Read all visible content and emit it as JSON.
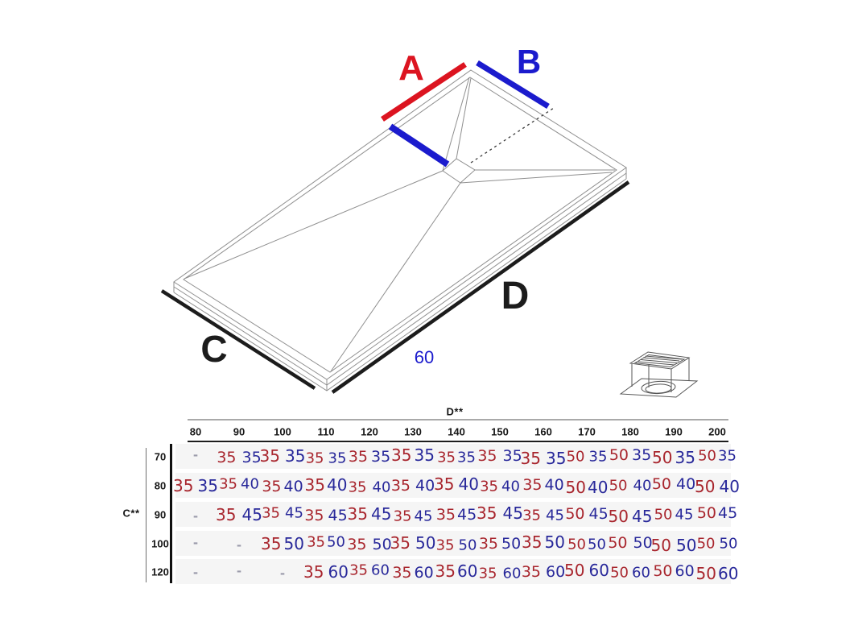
{
  "diagram": {
    "label_a": "A",
    "label_b": "B",
    "label_c": "C",
    "label_d": "D",
    "drain_distance": "60",
    "colors": {
      "measure_red": "#dc1420",
      "measure_blue": "#1b1bcd",
      "edge_black": "#1c1c1c",
      "table_red": "#a8252d",
      "table_blue": "#28289a"
    },
    "icons": [
      "drain-icon"
    ]
  },
  "table": {
    "column_axis_label": "D**",
    "row_axis_label": "C**",
    "columns": [
      "80",
      "90",
      "100",
      "110",
      "120",
      "130",
      "140",
      "150",
      "160",
      "170",
      "180",
      "190",
      "200"
    ],
    "empty_cell": "-",
    "rows": [
      {
        "label": "70",
        "cells": [
          "-",
          [
            "35",
            "35"
          ],
          [
            "35",
            "35"
          ],
          [
            "35",
            "35"
          ],
          [
            "35",
            "35"
          ],
          [
            "35",
            "35"
          ],
          [
            "35",
            "35"
          ],
          [
            "35",
            "35"
          ],
          [
            "35",
            "35"
          ],
          [
            "50",
            "35"
          ],
          [
            "50",
            "35"
          ],
          [
            "50",
            "35"
          ],
          [
            "50",
            "35"
          ]
        ]
      },
      {
        "label": "80",
        "cells": [
          [
            "35",
            "35"
          ],
          [
            "35",
            "40"
          ],
          [
            "35",
            "40"
          ],
          [
            "35",
            "40"
          ],
          [
            "35",
            "40"
          ],
          [
            "35",
            "40"
          ],
          [
            "35",
            "40"
          ],
          [
            "35",
            "40"
          ],
          [
            "35",
            "40"
          ],
          [
            "50",
            "40"
          ],
          [
            "50",
            "40"
          ],
          [
            "50",
            "40"
          ],
          [
            "50",
            "40"
          ]
        ]
      },
      {
        "label": "90",
        "cells": [
          "-",
          [
            "35",
            "45"
          ],
          [
            "35",
            "45"
          ],
          [
            "35",
            "45"
          ],
          [
            "35",
            "45"
          ],
          [
            "35",
            "45"
          ],
          [
            "35",
            "45"
          ],
          [
            "35",
            "45"
          ],
          [
            "35",
            "45"
          ],
          [
            "50",
            "45"
          ],
          [
            "50",
            "45"
          ],
          [
            "50",
            "45"
          ],
          [
            "50",
            "45"
          ]
        ]
      },
      {
        "label": "100",
        "cells": [
          "-",
          "-",
          [
            "35",
            "50"
          ],
          [
            "35",
            "50"
          ],
          [
            "35",
            "50"
          ],
          [
            "35",
            "50"
          ],
          [
            "35",
            "50"
          ],
          [
            "35",
            "50"
          ],
          [
            "35",
            "50"
          ],
          [
            "50",
            "50"
          ],
          [
            "50",
            "50"
          ],
          [
            "50",
            "50"
          ],
          [
            "50",
            "50"
          ]
        ]
      },
      {
        "label": "120",
        "cells": [
          "-",
          "-",
          "-",
          [
            "35",
            "60"
          ],
          [
            "35",
            "60"
          ],
          [
            "35",
            "60"
          ],
          [
            "35",
            "60"
          ],
          [
            "35",
            "60"
          ],
          [
            "35",
            "60"
          ],
          [
            "50",
            "60"
          ],
          [
            "50",
            "60"
          ],
          [
            "50",
            "60"
          ],
          [
            "50",
            "60"
          ]
        ]
      }
    ]
  }
}
